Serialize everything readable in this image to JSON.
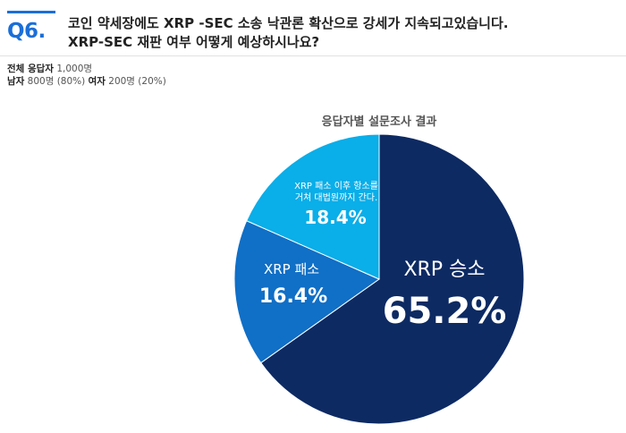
{
  "question": {
    "number": "Q6.",
    "line1": "코인 약세장에도 XRP -SEC 소송 낙관론 확산으로 강세가 지속되고있습니다.",
    "line2": "XRP-SEC 재판 여부 어떻게 예상하시나요?"
  },
  "respondents": {
    "total_label": "전체 응답자",
    "total_value": "1,000명",
    "male_label": "남자",
    "male_value": "800명 (80%)",
    "female_label": "여자",
    "female_value": "200명 (20%)"
  },
  "colors": {
    "accent": "#1a6fd8",
    "slice_win": "#0d2a63",
    "slice_lose": "#106fc6",
    "slice_appeal": "#0aaee8"
  },
  "chart_data": {
    "type": "pie",
    "title": "응답자별 설문조사 결과",
    "slices": [
      {
        "label": "XRP 승소",
        "value": 65.2,
        "value_label": "65.2%"
      },
      {
        "label": "XRP 패소",
        "value": 16.4,
        "value_label": "16.4%"
      },
      {
        "label_line1": "XRP 패소 이후 항소를",
        "label_line2": "거쳐 대법원까지 간다.",
        "value": 18.4,
        "value_label": "18.4%"
      }
    ]
  }
}
